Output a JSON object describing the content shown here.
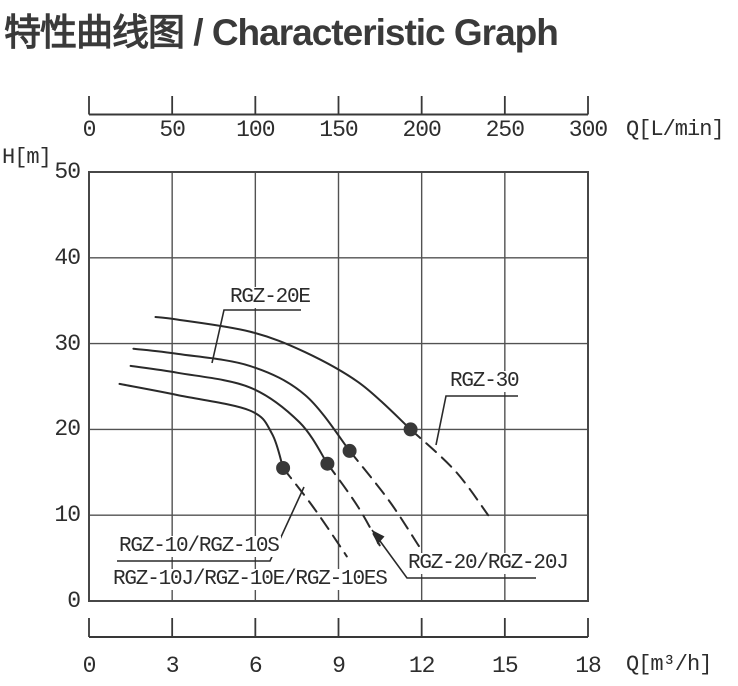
{
  "title": "特性曲线图 / Characteristic Graph",
  "axes": {
    "top": {
      "unit": "Q[L/min]",
      "ticks": [
        "0",
        "50",
        "100",
        "150",
        "200",
        "250",
        "300"
      ]
    },
    "left": {
      "unit": "H[m]",
      "ticks": [
        "50",
        "40",
        "30",
        "20",
        "10",
        "0"
      ]
    },
    "bottom": {
      "unit": "Q[m³/h]",
      "ticks": [
        "0",
        "3",
        "6",
        "9",
        "12",
        "15",
        "18"
      ]
    }
  },
  "curve_labels": {
    "rgz20e": "RGZ-20E",
    "rgz30": "RGZ-30",
    "rgz10": "RGZ-10/RGZ-10S",
    "rgz10j": "RGZ-10J/RGZ-10E/RGZ-10ES",
    "rgz20": "RGZ-20/RGZ-20J"
  },
  "chart_data": {
    "type": "line",
    "title": "特性曲线图 / Characteristic Graph",
    "x_axis_top": {
      "label": "Q[L/min]",
      "range": [
        0,
        300
      ],
      "ticks": [
        0,
        50,
        100,
        150,
        200,
        250,
        300
      ]
    },
    "x_axis_bottom": {
      "label": "Q[m³/h]",
      "range": [
        0,
        18
      ],
      "ticks": [
        0,
        3,
        6,
        9,
        12,
        15,
        18
      ]
    },
    "y_axis": {
      "label": "H[m]",
      "range": [
        0,
        50
      ],
      "ticks": [
        0,
        10,
        20,
        30,
        40,
        50
      ]
    },
    "grid": true,
    "line_style_note": "solid until duty point, dashed after",
    "series": [
      {
        "name": "RGZ-30",
        "points_solid": [
          [
            2.4,
            33.1
          ],
          [
            3.2,
            32.8
          ],
          [
            5.8,
            31.4
          ],
          [
            7.8,
            29.0
          ],
          [
            9.8,
            25.3
          ],
          [
            11.6,
            20.0
          ]
        ],
        "points_dashed": [
          [
            11.6,
            20.0
          ],
          [
            13.2,
            15.2
          ],
          [
            14.4,
            10.0
          ]
        ],
        "duty_point": [
          11.6,
          20.0
        ]
      },
      {
        "name": "RGZ-20E",
        "points_solid": [
          [
            1.6,
            29.4
          ],
          [
            3.2,
            28.8
          ],
          [
            5.8,
            27.4
          ],
          [
            7.8,
            24.0
          ],
          [
            9.4,
            17.5
          ]
        ],
        "points_dashed": [
          [
            9.4,
            17.5
          ],
          [
            10.8,
            11.8
          ],
          [
            11.9,
            6.4
          ]
        ],
        "duty_point": [
          9.4,
          17.5
        ]
      },
      {
        "name": "RGZ-20/RGZ-20J",
        "points_solid": [
          [
            1.5,
            27.4
          ],
          [
            3.2,
            26.6
          ],
          [
            5.8,
            24.9
          ],
          [
            7.6,
            20.8
          ],
          [
            8.6,
            16.0
          ]
        ],
        "points_dashed": [
          [
            8.6,
            16.0
          ],
          [
            9.7,
            11.0
          ],
          [
            10.6,
            5.8
          ]
        ],
        "duty_point": [
          8.6,
          16.0
        ]
      },
      {
        "name": "RGZ-10/RGZ-10S, RGZ-10J/RGZ-10E/RGZ-10ES",
        "points_solid": [
          [
            1.1,
            25.3
          ],
          [
            3.2,
            24.0
          ],
          [
            5.8,
            22.2
          ],
          [
            6.6,
            19.5
          ],
          [
            7.0,
            15.5
          ]
        ],
        "points_dashed": [
          [
            7.0,
            15.5
          ],
          [
            8.1,
            10.9
          ],
          [
            9.3,
            5.2
          ]
        ],
        "duty_point": [
          7.0,
          15.5
        ]
      }
    ]
  }
}
